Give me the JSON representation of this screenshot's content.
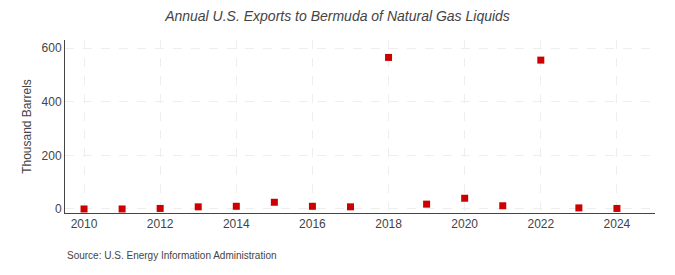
{
  "chart_data": {
    "type": "scatter",
    "title": "Annual U.S. Exports to Bermuda of Natural Gas Liquids",
    "ylabel": "Thousand Barrels",
    "annotations": [
      "Source: U.S. Energy Information Administration"
    ],
    "x": [
      2010,
      2011,
      2012,
      2013,
      2014,
      2015,
      2016,
      2017,
      2018,
      2019,
      2020,
      2021,
      2022,
      2023,
      2024
    ],
    "values": [
      0,
      0,
      2,
      8,
      10,
      25,
      10,
      8,
      565,
      18,
      40,
      12,
      555,
      4,
      2
    ],
    "color": "#cc0000",
    "marker": "square",
    "xlim": [
      2009.5,
      2025.0
    ],
    "ylim": [
      -15,
      630
    ],
    "xticks": [
      2010,
      2012,
      2014,
      2016,
      2018,
      2020,
      2022,
      2024
    ],
    "yticks": [
      0,
      200,
      400,
      600
    ],
    "grid": true
  }
}
